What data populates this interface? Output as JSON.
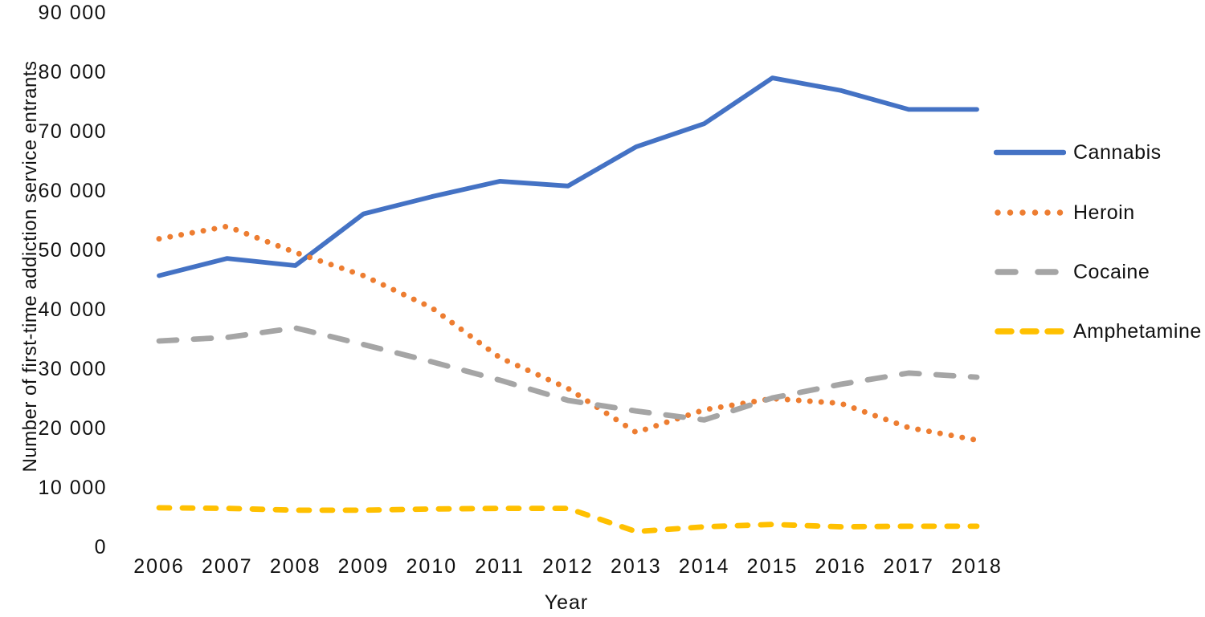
{
  "chart_data": {
    "type": "line",
    "title": "",
    "xlabel": "Year",
    "ylabel": "Number of first-time addiction  service entrants",
    "x": [
      2006,
      2007,
      2008,
      2009,
      2010,
      2011,
      2012,
      2013,
      2014,
      2015,
      2016,
      2017,
      2018
    ],
    "x_tick_labels": [
      "2006",
      "2007",
      "2008",
      "2009",
      "2010",
      "2011",
      "2012",
      "2013",
      "2014",
      "2015",
      "2016",
      "2017",
      "2018"
    ],
    "y_ticks": [
      0,
      10000,
      20000,
      30000,
      40000,
      50000,
      60000,
      70000,
      80000,
      90000
    ],
    "y_tick_labels": [
      "0",
      "10 000",
      "20 000",
      "30 000",
      "40 000",
      "50 000",
      "60 000",
      "70 000",
      "80 000",
      "90 000"
    ],
    "ylim": [
      0,
      90000
    ],
    "grid": false,
    "legend_position": "right",
    "series": [
      {
        "name": "Cannabis",
        "color": "#4472C4",
        "style": "solid",
        "values": [
          45600,
          48500,
          47300,
          56000,
          58900,
          61500,
          60700,
          67300,
          71200,
          78900,
          76800,
          73600,
          73600
        ]
      },
      {
        "name": "Heroin",
        "color": "#ED7D31",
        "style": "dotted",
        "values": [
          51800,
          53900,
          49500,
          45600,
          40200,
          31800,
          26600,
          19200,
          23000,
          24900,
          24100,
          20000,
          17900
        ]
      },
      {
        "name": "Cocaine",
        "color": "#A5A5A5",
        "style": "dashed-long",
        "values": [
          34600,
          35200,
          36800,
          34000,
          31100,
          28000,
          24600,
          22800,
          21300,
          25000,
          27300,
          29200,
          28500
        ]
      },
      {
        "name": "Amphetamine",
        "color": "#FFC000",
        "style": "dashed-short",
        "values": [
          6500,
          6400,
          6100,
          6100,
          6300,
          6400,
          6400,
          2500,
          3300,
          3700,
          3300,
          3400,
          3400
        ]
      }
    ]
  }
}
